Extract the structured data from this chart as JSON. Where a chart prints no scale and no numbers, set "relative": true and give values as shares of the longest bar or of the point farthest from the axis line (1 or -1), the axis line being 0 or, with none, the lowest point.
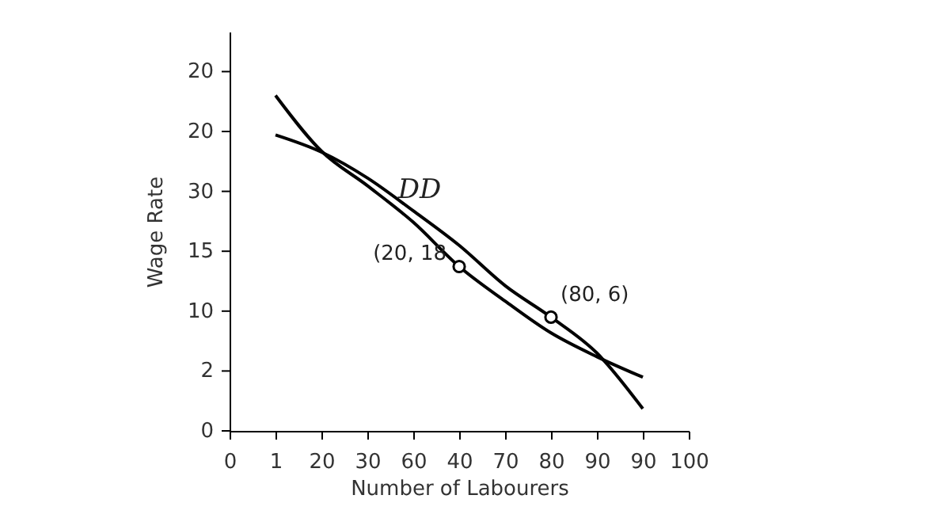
{
  "chart_data": {
    "type": "line",
    "xlabel": "Number of Labourers",
    "ylabel": "Wage Rate",
    "relative": true,
    "categories": [
      "0",
      "1",
      "20",
      "30",
      "60",
      "40",
      "70",
      "80",
      "90",
      "90",
      "100"
    ],
    "grid": false,
    "line_style": "solid",
    "series": [
      {
        "color": "#000000",
        "marker": "none",
        "values": [
          null,
          1,
          0.834,
          0.731,
          0.622,
          0.49,
          0.387,
          0.292,
          0.221,
          0.16,
          null
        ]
      },
      {
        "color": "#000000",
        "marker": "none",
        "values": [
          null,
          0.882,
          0.831,
          0.754,
          0.656,
          0.553,
          0.433,
          0.339,
          0.232,
          0.066,
          null
        ]
      },
      {
        "type": "scatter",
        "color": "#000000",
        "marker": "circle",
        "x": [
          "40",
          "80"
        ],
        "values": [
          0.49,
          0.339
        ]
      }
    ],
    "annotations": [
      "DD",
      "20",
      "20",
      "30",
      "15",
      "10",
      "2",
      "0",
      {
        "text": "(20, 18",
        "x": "40",
        "y": 0.49
      },
      {
        "text": "(80, 6)",
        "x": "80",
        "y": 0.339
      }
    ]
  }
}
